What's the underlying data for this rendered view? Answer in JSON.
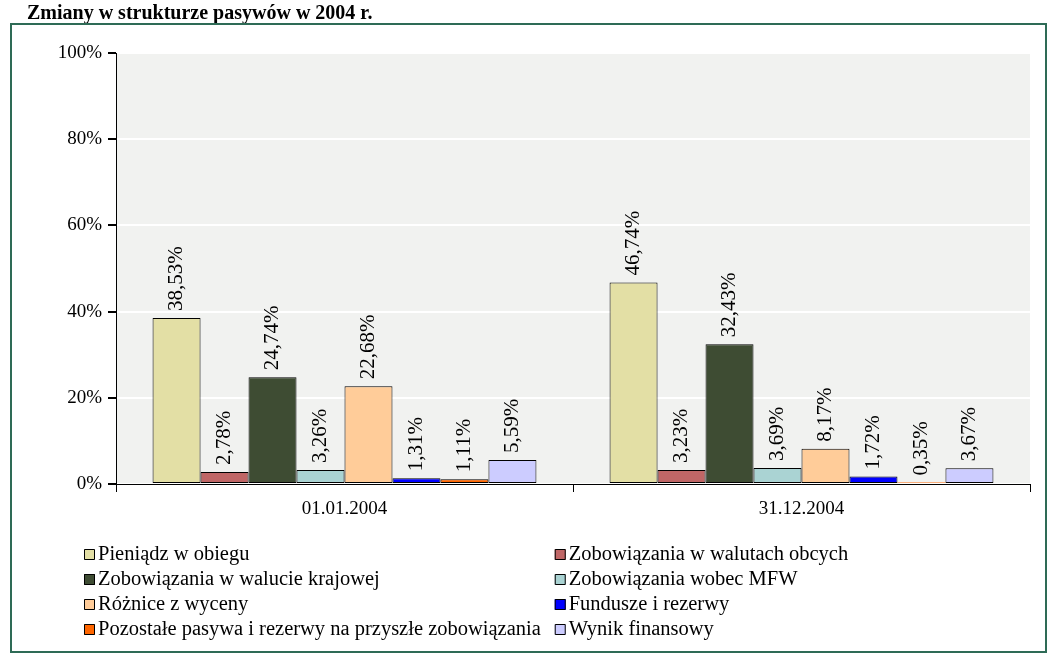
{
  "chart_data": {
    "type": "bar",
    "title": "Zmiany w strukturze pasywów w 2004 r.",
    "categories": [
      "01.01.2004",
      "31.12.2004"
    ],
    "series": [
      {
        "name": "Pieniądz w obiegu",
        "color": "#e3dfa5",
        "values": [
          38.53,
          46.74
        ],
        "value_labels": [
          "38,53%",
          "46,74%"
        ]
      },
      {
        "name": "Zobowiązania w walutach obcych",
        "color": "#c06666",
        "values": [
          2.78,
          3.23
        ],
        "value_labels": [
          "2,78%",
          "3,23%"
        ]
      },
      {
        "name": "Zobowiązania w walucie krajowej",
        "color": "#3e4c33",
        "values": [
          24.74,
          32.43
        ],
        "value_labels": [
          "24,74%",
          "32,43%"
        ]
      },
      {
        "name": "Zobowiązania wobec MFW",
        "color": "#aad3d3",
        "values": [
          3.26,
          3.69
        ],
        "value_labels": [
          "3,26%",
          "3,69%"
        ]
      },
      {
        "name": "Różnice z wyceny",
        "color": "#ffcc99",
        "values": [
          22.68,
          8.17
        ],
        "value_labels": [
          "22,68%",
          "8,17%"
        ]
      },
      {
        "name": "Fundusze i rezerwy",
        "color": "#0000ff",
        "values": [
          1.31,
          1.72
        ],
        "value_labels": [
          "1,31%",
          "1,72%"
        ]
      },
      {
        "name": "Pozostałe pasywa i rezerwy na przyszłe zobowiązania",
        "color": "#ff6600",
        "values": [
          1.11,
          0.35
        ],
        "value_labels": [
          "1,11%",
          "0,35%"
        ]
      },
      {
        "name": "Wynik finansowy",
        "color": "#ccccff",
        "values": [
          5.59,
          3.67
        ],
        "value_labels": [
          "5,59%",
          "3,67%"
        ]
      }
    ],
    "ylim": [
      0,
      100
    ],
    "yticks": [
      {
        "value": 0,
        "label": "0%"
      },
      {
        "value": 20,
        "label": "20%"
      },
      {
        "value": 40,
        "label": "40%"
      },
      {
        "value": 60,
        "label": "60%"
      },
      {
        "value": 80,
        "label": "80%"
      },
      {
        "value": 100,
        "label": "100%"
      }
    ],
    "grid": "y",
    "legend": "bottom"
  }
}
